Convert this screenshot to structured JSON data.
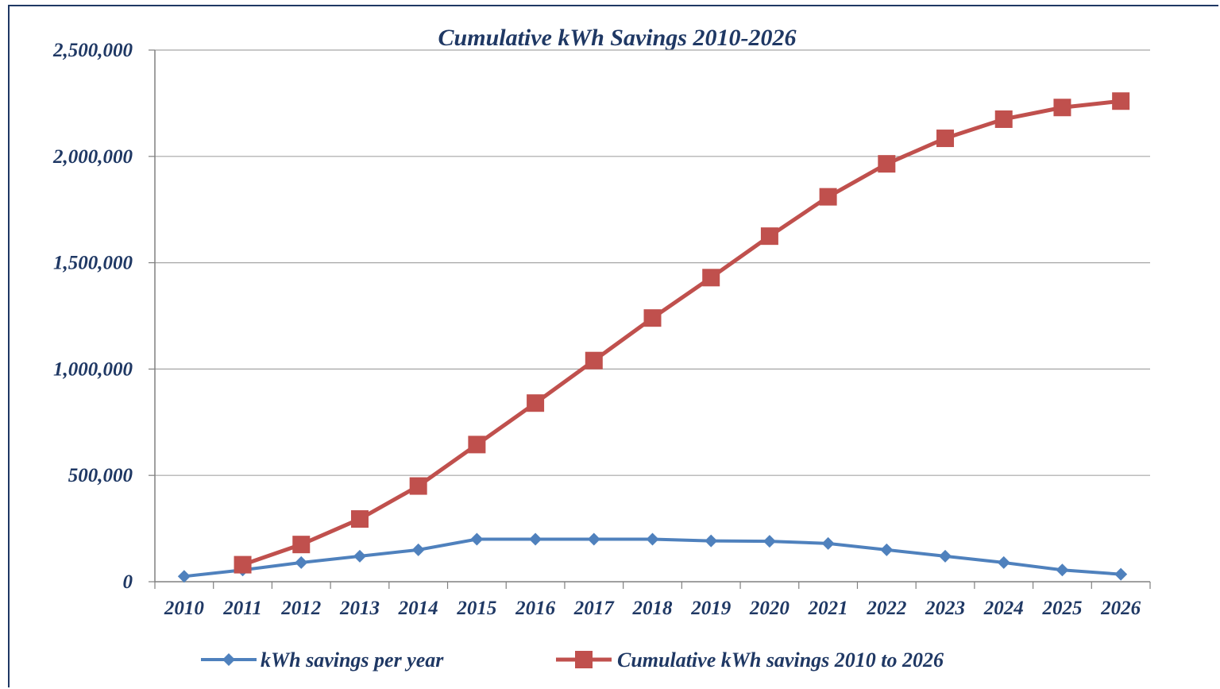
{
  "chart_data": {
    "type": "line",
    "title": "Cumulative kWh Savings 2010-2026",
    "xlabel": "",
    "ylabel": "",
    "categories": [
      "2010",
      "2011",
      "2012",
      "2013",
      "2014",
      "2015",
      "2016",
      "2017",
      "2018",
      "2019",
      "2020",
      "2021",
      "2022",
      "2023",
      "2024",
      "2025",
      "2026"
    ],
    "ylim": [
      0,
      2500000
    ],
    "yticks": [
      0,
      500000,
      1000000,
      1500000,
      2000000,
      2500000
    ],
    "ytick_labels": [
      "0",
      "500,000",
      "1,000,000",
      "1,500,000",
      "2,000,000",
      "2,500,000"
    ],
    "grid": true,
    "legend_position": "bottom",
    "series": [
      {
        "name": "kWh savings per year",
        "color": "#4f81bd",
        "marker": "diamond",
        "values": [
          25000,
          55000,
          90000,
          120000,
          150000,
          200000,
          200000,
          200000,
          200000,
          192000,
          190000,
          180000,
          150000,
          120000,
          90000,
          55000,
          35000
        ]
      },
      {
        "name": "Cumulative kWh savings 2010 to 2026",
        "color": "#c0504d",
        "marker": "square",
        "start_index": 1,
        "values": [
          null,
          80000,
          175000,
          295000,
          450000,
          645000,
          840000,
          1040000,
          1240000,
          1430000,
          1625000,
          1810000,
          1965000,
          2085000,
          2175000,
          2230000,
          2260000
        ]
      }
    ]
  }
}
